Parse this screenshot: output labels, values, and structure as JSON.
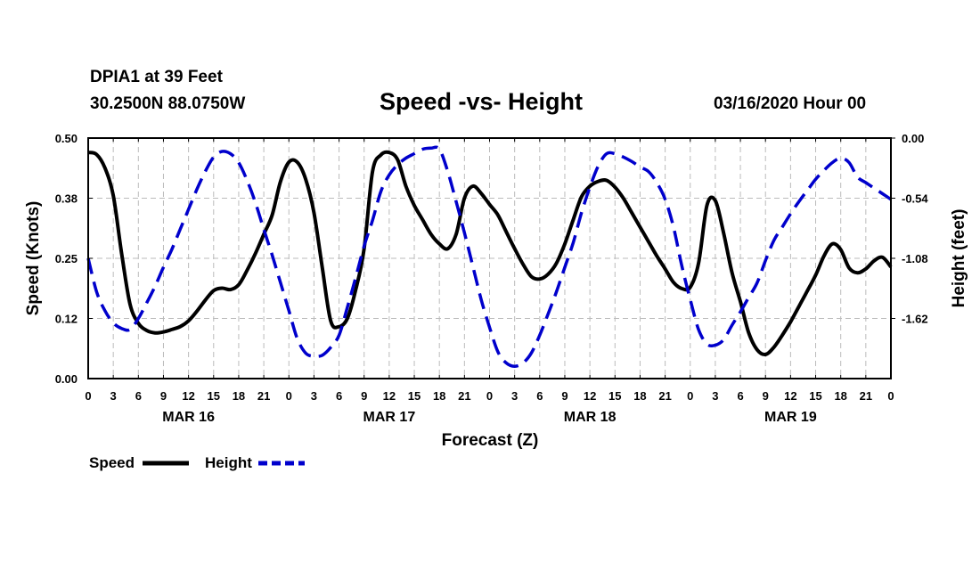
{
  "header": {
    "station": "DPIA1 at 39 Feet",
    "coords": "30.2500N 88.0750W",
    "title": "Speed -vs- Height",
    "datetime": "03/16/2020 Hour 00"
  },
  "colors": {
    "speed": "#000000",
    "height": "#0000cc",
    "grid": "#bbbbbb"
  },
  "chart_data": {
    "type": "line",
    "title": "Speed -vs- Height",
    "xlabel": "Forecast (Z)",
    "ylabel": "Speed (Knots)",
    "y2label": "Height (feet)",
    "xlim": [
      0,
      96
    ],
    "ylim": [
      0,
      0.5
    ],
    "y2lim": [
      -2.16,
      0
    ],
    "x_ticks": [
      0,
      3,
      6,
      9,
      12,
      15,
      18,
      21,
      24,
      27,
      30,
      33,
      36,
      39,
      42,
      45,
      48,
      51,
      54,
      57,
      60,
      63,
      66,
      69,
      72,
      75,
      78,
      81,
      84,
      87,
      90,
      93,
      96
    ],
    "x_tick_labels": [
      "0",
      "3",
      "6",
      "9",
      "12",
      "15",
      "18",
      "21",
      "0",
      "3",
      "6",
      "9",
      "12",
      "15",
      "18",
      "21",
      "0",
      "3",
      "6",
      "9",
      "12",
      "15",
      "18",
      "21",
      "0",
      "3",
      "6",
      "9",
      "12",
      "15",
      "18",
      "21",
      "0"
    ],
    "y_ticks": [
      0,
      0.125,
      0.25,
      0.375,
      0.5
    ],
    "y_tick_labels": [
      "0.00",
      "0.12",
      "0.25",
      "0.38",
      "0.50"
    ],
    "y2_ticks": [
      0,
      -0.54,
      -1.08,
      -1.62
    ],
    "y2_tick_labels": [
      "0.00",
      "-0.54",
      "-1.08",
      "-1.62"
    ],
    "date_labels": [
      {
        "x": 12,
        "label": "MAR 16"
      },
      {
        "x": 36,
        "label": "MAR 17"
      },
      {
        "x": 60,
        "label": "MAR 18"
      },
      {
        "x": 84,
        "label": "MAR 19"
      }
    ],
    "legend": {
      "position": "bottom-left",
      "entries": [
        "Speed",
        "Height"
      ]
    },
    "grid": true,
    "series": [
      {
        "name": "Speed",
        "axis": "left",
        "style": "solid",
        "x": [
          0,
          1,
          2,
          3,
          4,
          5,
          6,
          7,
          8,
          9,
          10,
          11,
          12,
          13,
          14,
          15,
          16,
          17,
          18,
          19,
          20,
          21,
          22,
          23,
          24,
          25,
          26,
          27,
          28,
          29,
          30,
          31,
          32,
          33,
          34,
          35,
          36,
          37,
          38,
          39,
          40,
          41,
          42,
          43,
          44,
          45,
          46,
          47,
          48,
          49,
          50,
          51,
          52,
          53,
          54,
          55,
          56,
          57,
          58,
          59,
          60,
          61,
          62,
          63,
          64,
          65,
          66,
          67,
          68,
          69,
          70,
          71,
          72,
          73,
          74,
          75,
          76,
          77,
          78,
          79,
          80,
          81,
          82,
          83,
          84,
          85,
          86,
          87,
          88,
          89,
          90,
          91,
          92,
          93,
          94,
          95,
          96
        ],
        "values": [
          0.47,
          0.466,
          0.438,
          0.38,
          0.26,
          0.155,
          0.115,
          0.1,
          0.095,
          0.097,
          0.102,
          0.108,
          0.12,
          0.14,
          0.163,
          0.183,
          0.188,
          0.185,
          0.195,
          0.225,
          0.26,
          0.3,
          0.34,
          0.41,
          0.45,
          0.45,
          0.415,
          0.345,
          0.23,
          0.12,
          0.108,
          0.125,
          0.185,
          0.27,
          0.43,
          0.465,
          0.47,
          0.455,
          0.4,
          0.36,
          0.33,
          0.3,
          0.28,
          0.27,
          0.3,
          0.375,
          0.4,
          0.385,
          0.362,
          0.34,
          0.305,
          0.27,
          0.238,
          0.212,
          0.207,
          0.217,
          0.24,
          0.28,
          0.33,
          0.378,
          0.4,
          0.41,
          0.412,
          0.398,
          0.375,
          0.345,
          0.315,
          0.285,
          0.255,
          0.228,
          0.2,
          0.187,
          0.19,
          0.24,
          0.36,
          0.37,
          0.302,
          0.22,
          0.16,
          0.095,
          0.06,
          0.05,
          0.065,
          0.09,
          0.118,
          0.15,
          0.182,
          0.215,
          0.255,
          0.28,
          0.268,
          0.23,
          0.22,
          0.228,
          0.245,
          0.252,
          0.232
        ]
      },
      {
        "name": "Height",
        "axis": "right",
        "style": "dashed",
        "x": [
          0,
          1,
          2,
          3,
          4,
          5,
          6,
          7,
          8,
          9,
          10,
          11,
          12,
          13,
          14,
          15,
          16,
          17,
          18,
          19,
          20,
          21,
          22,
          23,
          24,
          25,
          26,
          27,
          28,
          29,
          30,
          31,
          32,
          33,
          34,
          35,
          36,
          37,
          38,
          39,
          40,
          41,
          42,
          43,
          44,
          45,
          46,
          47,
          48,
          49,
          50,
          51,
          52,
          53,
          54,
          55,
          56,
          57,
          58,
          59,
          60,
          61,
          62,
          63,
          64,
          65,
          66,
          67,
          68,
          69,
          70,
          71,
          72,
          73,
          74,
          75,
          76,
          77,
          78,
          79,
          80,
          81,
          82,
          83,
          84,
          85,
          86,
          87,
          88,
          89,
          90,
          91,
          92,
          93,
          94,
          95,
          96
        ],
        "values": [
          -1.08,
          -1.38,
          -1.55,
          -1.66,
          -1.71,
          -1.72,
          -1.62,
          -1.48,
          -1.33,
          -1.16,
          -1.0,
          -0.82,
          -0.64,
          -0.46,
          -0.3,
          -0.17,
          -0.12,
          -0.14,
          -0.22,
          -0.38,
          -0.58,
          -0.82,
          -1.05,
          -1.3,
          -1.55,
          -1.8,
          -1.93,
          -1.96,
          -1.95,
          -1.88,
          -1.77,
          -1.52,
          -1.25,
          -0.97,
          -0.74,
          -0.48,
          -0.33,
          -0.24,
          -0.18,
          -0.14,
          -0.1,
          -0.09,
          -0.1,
          -0.3,
          -0.57,
          -0.85,
          -1.15,
          -1.45,
          -1.7,
          -1.92,
          -2.02,
          -2.05,
          -2.02,
          -1.93,
          -1.77,
          -1.58,
          -1.38,
          -1.16,
          -0.94,
          -0.67,
          -0.44,
          -0.25,
          -0.14,
          -0.14,
          -0.17,
          -0.21,
          -0.26,
          -0.3,
          -0.4,
          -0.55,
          -0.8,
          -1.15,
          -1.45,
          -1.72,
          -1.85,
          -1.86,
          -1.81,
          -1.68,
          -1.56,
          -1.43,
          -1.3,
          -1.1,
          -0.92,
          -0.8,
          -0.68,
          -0.57,
          -0.47,
          -0.37,
          -0.29,
          -0.22,
          -0.18,
          -0.22,
          -0.35,
          -0.4,
          -0.45,
          -0.5,
          -0.55
        ]
      }
    ]
  }
}
